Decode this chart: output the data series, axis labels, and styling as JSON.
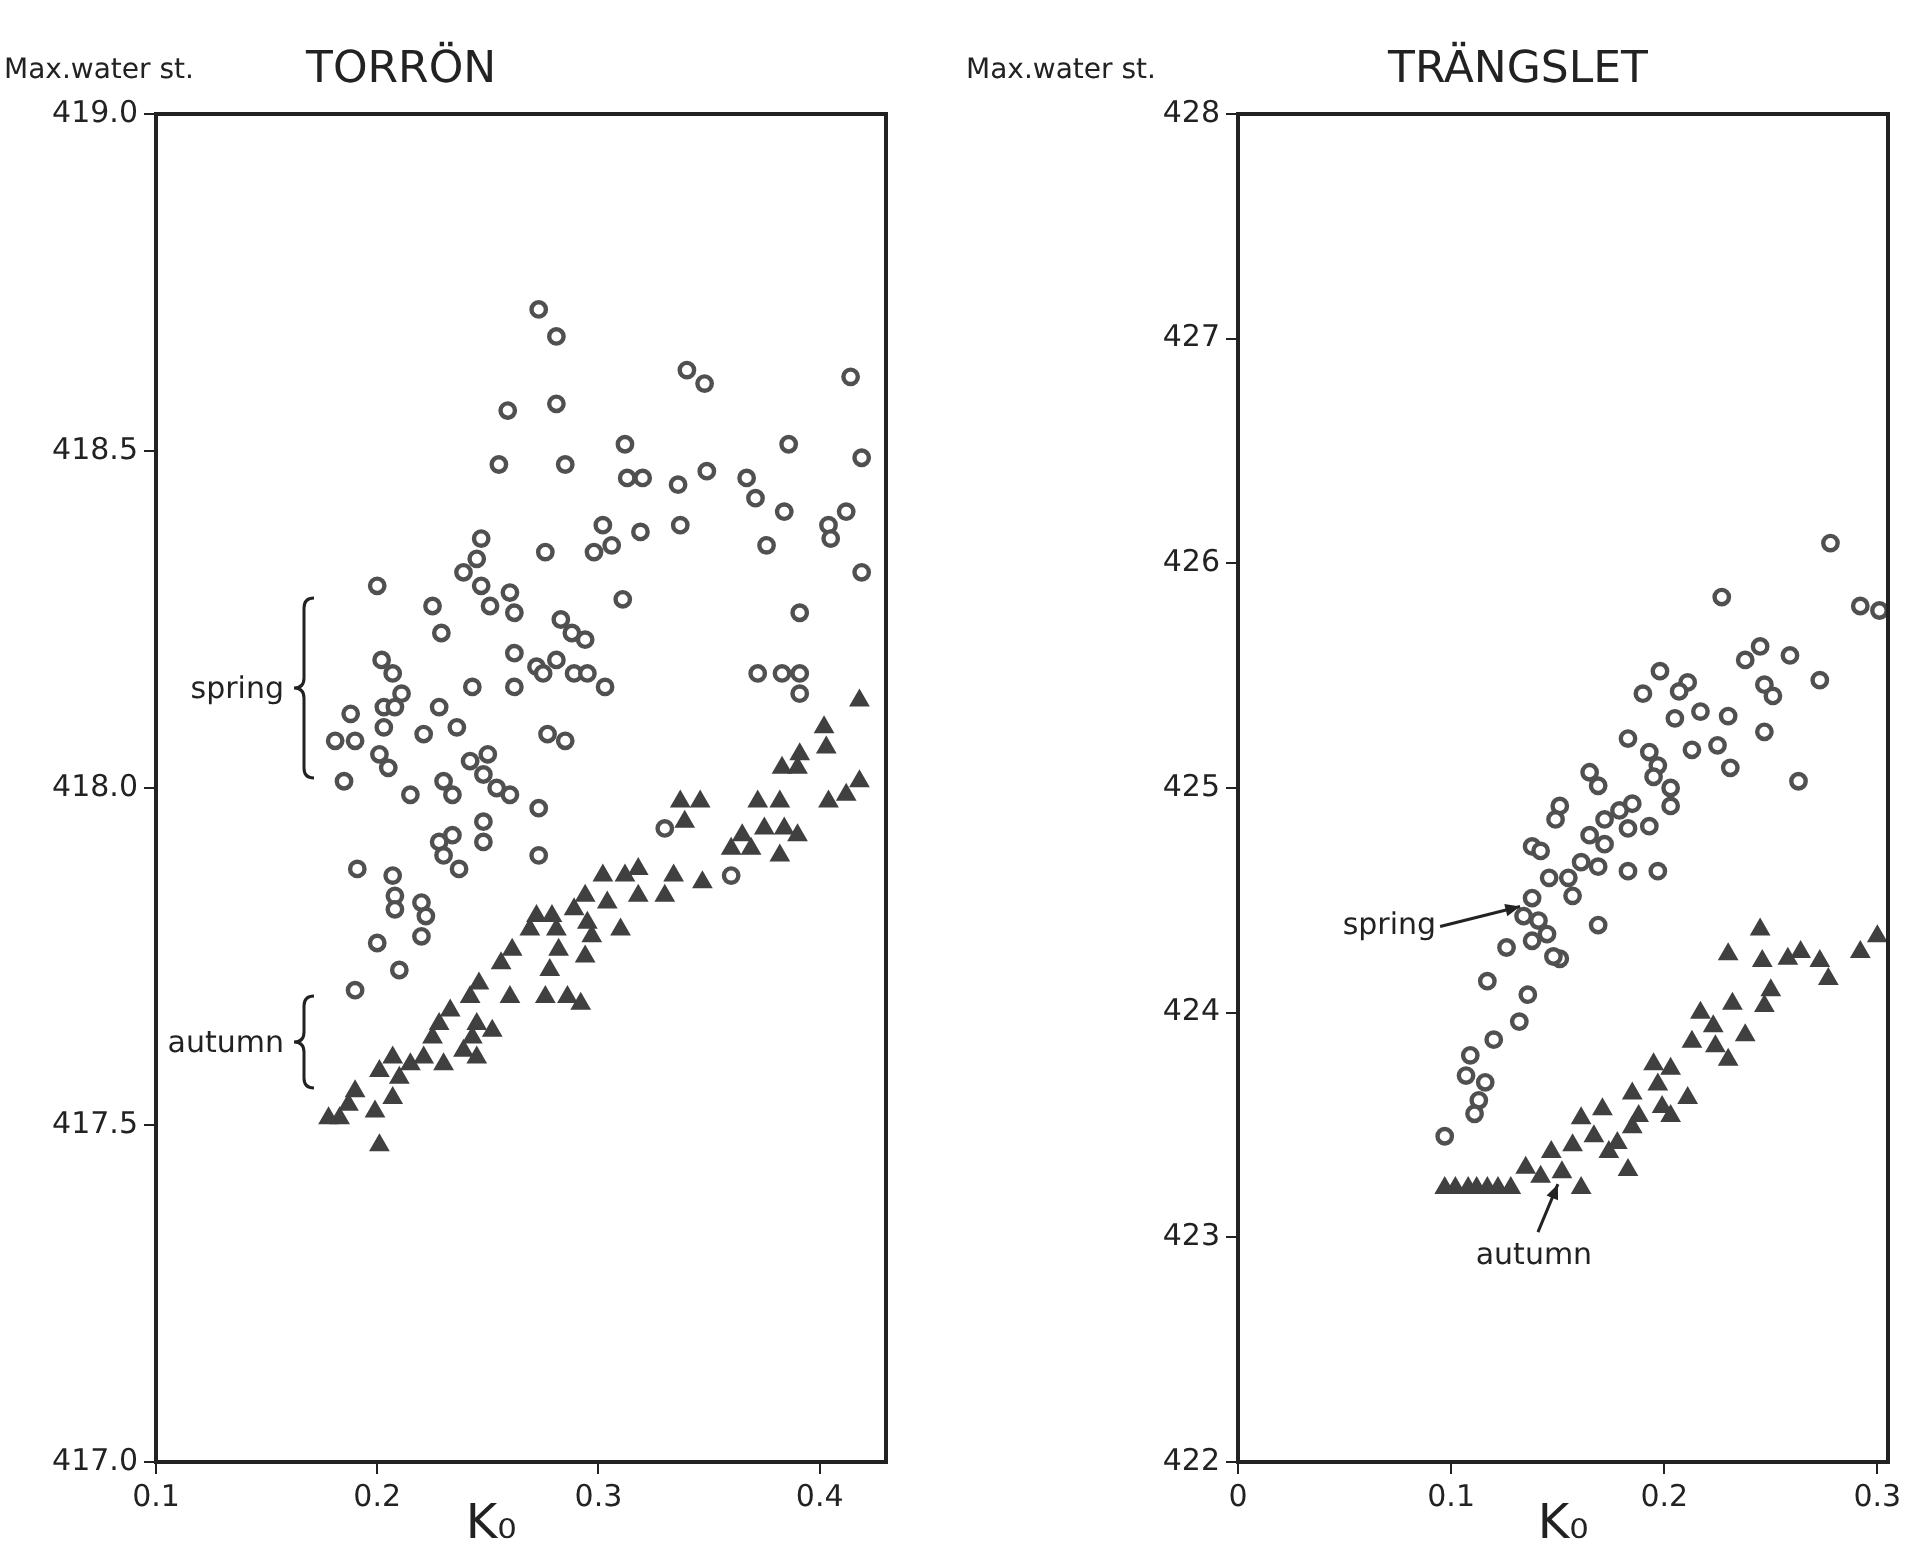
{
  "chart_data": [
    {
      "type": "scatter",
      "title": "TORRÖN",
      "ylabel": "Max.water st.",
      "xlabel": "K₀",
      "xlim": [
        0.1,
        0.43
      ],
      "ylim": [
        417,
        419
      ],
      "xticks": [
        0.1,
        0.2,
        0.3,
        0.4
      ],
      "yticks": [
        {
          "value": 417,
          "label": "417.0"
        },
        418.5,
        {
          "value": 418,
          "label": "418.0"
        },
        417.5,
        {
          "value": 419,
          "label": "419.0"
        }
      ],
      "grid": false,
      "legend": false,
      "annotations": [
        "spring",
        "autumn"
      ],
      "series": [
        {
          "color": "#505050",
          "marker": "circle",
          "x": [
            0.273,
            0.281,
            0.34,
            0.348,
            0.414,
            0.259,
            0.281,
            0.312,
            0.386,
            0.419,
            0.255,
            0.285,
            0.313,
            0.32,
            0.336,
            0.349,
            0.367,
            0.371,
            0.384,
            0.404,
            0.412,
            0.405,
            0.302,
            0.319,
            0.337,
            0.298,
            0.306,
            0.276,
            0.376,
            0.419,
            0.247,
            0.245,
            0.239,
            0.2,
            0.247,
            0.26,
            0.225,
            0.251,
            0.262,
            0.311,
            0.391,
            0.229,
            0.283,
            0.288,
            0.294,
            0.202,
            0.207,
            0.262,
            0.272,
            0.281,
            0.275,
            0.289,
            0.295,
            0.303,
            0.243,
            0.262,
            0.211,
            0.372,
            0.383,
            0.391,
            0.391,
            0.188,
            0.203,
            0.208,
            0.228,
            0.203,
            0.221,
            0.236,
            0.277,
            0.285,
            0.181,
            0.19,
            0.201,
            0.205,
            0.242,
            0.25,
            0.185,
            0.215,
            0.23,
            0.234,
            0.248,
            0.254,
            0.26,
            0.273,
            0.234,
            0.248,
            0.228,
            0.23,
            0.237,
            0.248,
            0.273,
            0.33,
            0.36,
            0.191,
            0.207,
            0.208,
            0.208,
            0.22,
            0.222,
            0.2,
            0.22,
            0.21,
            0.19
          ],
          "values": [
            418.71,
            418.67,
            418.62,
            418.6,
            418.61,
            418.56,
            418.57,
            418.51,
            418.51,
            418.49,
            418.48,
            418.48,
            418.46,
            418.46,
            418.45,
            418.47,
            418.46,
            418.43,
            418.41,
            418.39,
            418.41,
            418.37,
            418.39,
            418.38,
            418.39,
            418.35,
            418.36,
            418.35,
            418.36,
            418.32,
            418.37,
            418.34,
            418.32,
            418.3,
            418.3,
            418.29,
            418.27,
            418.27,
            418.26,
            418.28,
            418.26,
            418.23,
            418.25,
            418.23,
            418.22,
            418.19,
            418.17,
            418.2,
            418.18,
            418.19,
            418.17,
            418.17,
            418.17,
            418.15,
            418.15,
            418.15,
            418.14,
            418.17,
            418.17,
            418.17,
            418.14,
            418.11,
            418.12,
            418.12,
            418.12,
            418.09,
            418.08,
            418.09,
            418.08,
            418.07,
            418.07,
            418.07,
            418.05,
            418.03,
            418.04,
            418.05,
            418.01,
            417.99,
            418.01,
            417.99,
            418.02,
            418.0,
            417.99,
            417.97,
            417.93,
            417.95,
            417.92,
            417.9,
            417.88,
            417.92,
            417.9,
            417.94,
            417.87,
            417.88,
            417.87,
            417.84,
            417.82,
            417.83,
            417.81,
            417.77,
            417.78,
            417.73,
            417.7
          ]
        },
        {
          "color": "#404040",
          "marker": "triangle",
          "x": [
            0.418,
            0.402,
            0.403,
            0.391,
            0.383,
            0.39,
            0.418,
            0.412,
            0.404,
            0.372,
            0.382,
            0.346,
            0.337,
            0.339,
            0.375,
            0.384,
            0.39,
            0.365,
            0.36,
            0.369,
            0.382,
            0.318,
            0.312,
            0.302,
            0.347,
            0.334,
            0.33,
            0.318,
            0.304,
            0.294,
            0.289,
            0.279,
            0.272,
            0.269,
            0.281,
            0.295,
            0.297,
            0.31,
            0.282,
            0.294,
            0.278,
            0.261,
            0.256,
            0.26,
            0.276,
            0.286,
            0.292,
            0.246,
            0.242,
            0.233,
            0.228,
            0.245,
            0.252,
            0.243,
            0.239,
            0.245,
            0.225,
            0.221,
            0.23,
            0.215,
            0.207,
            0.201,
            0.21,
            0.207,
            0.199,
            0.19,
            0.187,
            0.183,
            0.178,
            0.201
          ],
          "values": [
            418.13,
            418.09,
            418.06,
            418.05,
            418.03,
            418.03,
            418.01,
            417.99,
            417.98,
            417.98,
            417.98,
            417.98,
            417.98,
            417.95,
            417.94,
            417.94,
            417.93,
            417.93,
            417.91,
            417.91,
            417.9,
            417.88,
            417.87,
            417.87,
            417.86,
            417.87,
            417.84,
            417.84,
            417.83,
            417.84,
            417.82,
            417.81,
            417.81,
            417.79,
            417.79,
            417.8,
            417.78,
            417.79,
            417.76,
            417.75,
            417.73,
            417.76,
            417.74,
            417.69,
            417.69,
            417.69,
            417.68,
            417.71,
            417.69,
            417.67,
            417.65,
            417.65,
            417.64,
            417.63,
            417.61,
            417.6,
            417.63,
            417.6,
            417.59,
            417.59,
            417.6,
            417.58,
            417.57,
            417.54,
            417.52,
            417.55,
            417.53,
            417.51,
            417.51,
            417.47
          ]
        }
      ]
    },
    {
      "type": "scatter",
      "title": "TRÄNGSLET",
      "ylabel": "Max.water st.",
      "xlabel": "K₀",
      "xlim": [
        0,
        0.305
      ],
      "ylim": [
        422,
        428
      ],
      "xticks": [
        0,
        0.1,
        0.2,
        0.3
      ],
      "yticks": [
        422,
        423,
        424,
        425,
        426,
        427,
        428
      ],
      "grid": false,
      "legend": false,
      "annotations": [
        {
          "text": "spring",
          "x": 0.138,
          "y": 424.49
        },
        {
          "text": "autumn",
          "x": 0.152,
          "y": 423.29
        }
      ],
      "series": [
        {
          "color": "#505050",
          "marker": "circle",
          "x": [
            0.278,
            0.227,
            0.292,
            0.301,
            0.245,
            0.238,
            0.259,
            0.198,
            0.211,
            0.207,
            0.247,
            0.251,
            0.273,
            0.19,
            0.217,
            0.205,
            0.23,
            0.247,
            0.183,
            0.193,
            0.213,
            0.225,
            0.197,
            0.195,
            0.231,
            0.263,
            0.165,
            0.169,
            0.203,
            0.203,
            0.151,
            0.149,
            0.172,
            0.179,
            0.185,
            0.183,
            0.193,
            0.165,
            0.172,
            0.138,
            0.142,
            0.161,
            0.169,
            0.183,
            0.197,
            0.146,
            0.155,
            0.138,
            0.157,
            0.134,
            0.141,
            0.145,
            0.138,
            0.169,
            0.126,
            0.151,
            0.148,
            0.117,
            0.136,
            0.132,
            0.12,
            0.109,
            0.107,
            0.116,
            0.113,
            0.111,
            0.097
          ],
          "values": [
            426.09,
            425.85,
            425.81,
            425.79,
            425.63,
            425.57,
            425.59,
            425.52,
            425.47,
            425.43,
            425.46,
            425.41,
            425.48,
            425.42,
            425.34,
            425.31,
            425.32,
            425.25,
            425.22,
            425.16,
            425.17,
            425.19,
            425.1,
            425.05,
            425.09,
            425.03,
            425.07,
            425.01,
            425.0,
            424.92,
            424.92,
            424.86,
            424.86,
            424.9,
            424.93,
            424.82,
            424.83,
            424.79,
            424.75,
            424.74,
            424.72,
            424.67,
            424.65,
            424.63,
            424.63,
            424.6,
            424.6,
            424.51,
            424.52,
            424.43,
            424.41,
            424.35,
            424.32,
            424.39,
            424.29,
            424.24,
            424.25,
            424.14,
            424.08,
            423.96,
            423.88,
            423.81,
            423.72,
            423.69,
            423.61,
            423.55,
            423.45
          ]
        },
        {
          "color": "#404040",
          "marker": "triangle",
          "x": [
            0.245,
            0.3,
            0.292,
            0.23,
            0.246,
            0.258,
            0.264,
            0.273,
            0.277,
            0.25,
            0.247,
            0.232,
            0.217,
            0.238,
            0.223,
            0.213,
            0.224,
            0.23,
            0.195,
            0.203,
            0.185,
            0.197,
            0.211,
            0.199,
            0.203,
            0.188,
            0.171,
            0.161,
            0.185,
            0.167,
            0.178,
            0.174,
            0.157,
            0.147,
            0.135,
            0.152,
            0.142,
            0.161,
            0.183,
            0.128,
            0.122,
            0.117,
            0.112,
            0.108,
            0.102,
            0.097
          ],
          "values": [
            424.37,
            424.34,
            424.27,
            424.26,
            424.23,
            424.24,
            424.27,
            424.23,
            424.15,
            424.1,
            424.03,
            424.04,
            424.0,
            423.9,
            423.94,
            423.87,
            423.85,
            423.79,
            423.77,
            423.75,
            423.64,
            423.68,
            423.62,
            423.58,
            423.54,
            423.54,
            423.57,
            423.53,
            423.49,
            423.45,
            423.42,
            423.38,
            423.41,
            423.38,
            423.31,
            423.29,
            423.27,
            423.22,
            423.3,
            423.22,
            423.22,
            423.22,
            423.22,
            423.22,
            423.22,
            423.22
          ]
        }
      ]
    }
  ]
}
